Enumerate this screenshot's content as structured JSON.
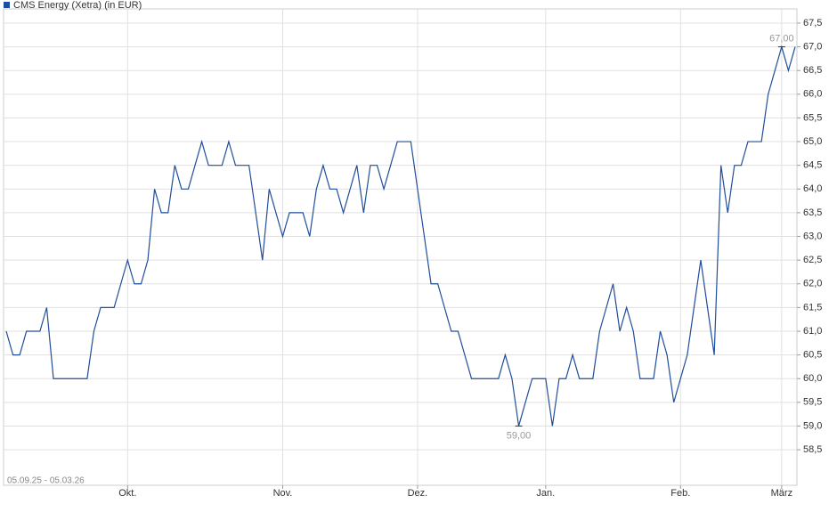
{
  "chart_data": {
    "type": "line",
    "series": [
      {
        "name": "CMS Energy (Xetra) (in EUR)",
        "color": "#1f4e9c",
        "values": [
          61,
          60.5,
          60.5,
          61,
          61,
          61,
          61.5,
          60,
          60,
          60,
          60,
          60,
          60,
          61,
          61.5,
          61.5,
          61.5,
          62,
          62.5,
          62,
          62,
          62.5,
          64,
          63.5,
          63.5,
          64.5,
          64,
          64,
          64.5,
          65,
          64.5,
          64.5,
          64.5,
          65,
          64.5,
          64.5,
          64.5,
          63.5,
          62.5,
          64,
          63.5,
          63,
          63.5,
          63.5,
          63.5,
          63,
          64,
          64.5,
          64,
          64,
          63.5,
          64,
          64.5,
          63.5,
          64.5,
          64.5,
          64,
          64.5,
          65,
          65,
          65,
          64,
          63,
          62,
          62,
          61.5,
          61,
          61,
          60.5,
          60,
          60,
          60,
          60,
          60,
          60.5,
          60,
          59,
          59.5,
          60,
          60,
          60,
          59,
          60,
          60,
          60.5,
          60,
          60,
          60,
          61,
          61.5,
          62,
          61,
          61.5,
          61,
          60,
          60,
          60,
          61,
          60.5,
          59.5,
          60,
          60.5,
          61.5,
          62.5,
          61.5,
          60.5,
          64.5,
          63.5,
          64.5,
          64.5,
          65,
          65,
          65,
          66,
          66.5,
          67,
          66.5,
          67
        ]
      }
    ],
    "categories": [
      null,
      null,
      null,
      null,
      null,
      null,
      null,
      null,
      null,
      null,
      null,
      null,
      null,
      null,
      null,
      null,
      null,
      null,
      "Okt.",
      null,
      null,
      null,
      null,
      null,
      null,
      null,
      null,
      null,
      null,
      null,
      null,
      null,
      null,
      null,
      null,
      null,
      null,
      null,
      null,
      null,
      null,
      "Nov.",
      null,
      null,
      null,
      null,
      null,
      null,
      null,
      null,
      null,
      null,
      null,
      null,
      null,
      null,
      null,
      null,
      null,
      null,
      null,
      "Dez.",
      null,
      null,
      null,
      null,
      null,
      null,
      null,
      null,
      null,
      null,
      null,
      null,
      null,
      null,
      null,
      null,
      null,
      null,
      "Jan.",
      null,
      null,
      null,
      null,
      null,
      null,
      null,
      null,
      null,
      null,
      null,
      null,
      null,
      null,
      null,
      null,
      null,
      null,
      null,
      "Feb.",
      null,
      null,
      null,
      null,
      null,
      null,
      null,
      null,
      null,
      null,
      null,
      null,
      null,
      null,
      "März",
      null,
      null
    ],
    "date_range": "05.09.25 - 05.03.26",
    "annotations": [
      {
        "value": 67,
        "label": "67,00",
        "position": "above"
      },
      {
        "value": 59,
        "label": "59,00",
        "position": "below"
      }
    ],
    "ylim": [
      57.75,
      67.8
    ],
    "yticks": [
      {
        "value": 58.5,
        "label": "58,5"
      },
      {
        "value": 59,
        "label": "59,0"
      },
      {
        "value": 59.5,
        "label": "59,5"
      },
      {
        "value": 60,
        "label": "60,0"
      },
      {
        "value": 60.5,
        "label": "60,5"
      },
      {
        "value": 61,
        "label": "61,0"
      },
      {
        "value": 61.5,
        "label": "61,5"
      },
      {
        "value": 62,
        "label": "62,0"
      },
      {
        "value": 62.5,
        "label": "62,5"
      },
      {
        "value": 63,
        "label": "63,0"
      },
      {
        "value": 63.5,
        "label": "63,5"
      },
      {
        "value": 64,
        "label": "64,0"
      },
      {
        "value": 64.5,
        "label": "64,5"
      },
      {
        "value": 65,
        "label": "65,0"
      },
      {
        "value": 65.5,
        "label": "65,5"
      },
      {
        "value": 66,
        "label": "66,0"
      },
      {
        "value": 66.5,
        "label": "66,5"
      },
      {
        "value": 67,
        "label": "67,0"
      },
      {
        "value": 67.5,
        "label": "67,5"
      }
    ],
    "grid": true
  }
}
